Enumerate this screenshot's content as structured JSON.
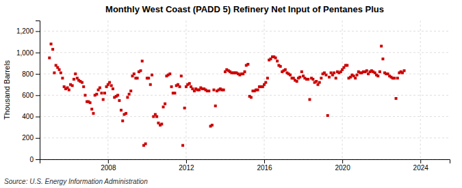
{
  "chart_data": {
    "type": "scatter",
    "title": "Monthly West Coast (PADD 5) Refinery Net Input of Pentanes Plus",
    "ylabel": "Thousand Barrels",
    "annotations": [
      "Source: U.S. Energy Information Administration"
    ],
    "color": "#cc0000",
    "marker": "square",
    "grid": true,
    "xlim": [
      2004.5,
      2025.5
    ],
    "xticks": [
      2008,
      2012,
      2016,
      2020,
      2024
    ],
    "ylim": [
      0,
      1300
    ],
    "yticks": [
      0,
      200,
      400,
      600,
      800,
      {
        "value": 1000,
        "label": "1,000"
      },
      {
        "value": 1200,
        "label": "1,200"
      }
    ],
    "x": [
      2005.0,
      2005.08,
      2005.17,
      2005.25,
      2005.33,
      2005.42,
      2005.5,
      2005.58,
      2005.67,
      2005.75,
      2005.83,
      2005.92,
      2006.0,
      2006.08,
      2006.17,
      2006.25,
      2006.33,
      2006.42,
      2006.5,
      2006.58,
      2006.67,
      2006.75,
      2006.83,
      2006.92,
      2007.0,
      2007.08,
      2007.17,
      2007.25,
      2007.33,
      2007.42,
      2007.5,
      2007.58,
      2007.67,
      2007.75,
      2007.83,
      2007.92,
      2008.0,
      2008.08,
      2008.17,
      2008.25,
      2008.33,
      2008.42,
      2008.5,
      2008.58,
      2008.67,
      2008.75,
      2008.83,
      2008.92,
      2009.0,
      2009.08,
      2009.17,
      2009.25,
      2009.33,
      2009.42,
      2009.5,
      2009.58,
      2009.67,
      2009.75,
      2009.83,
      2009.92,
      2010.0,
      2010.08,
      2010.17,
      2010.25,
      2010.33,
      2010.42,
      2010.5,
      2010.58,
      2010.67,
      2010.75,
      2010.83,
      2010.92,
      2011.0,
      2011.08,
      2011.17,
      2011.25,
      2011.33,
      2011.42,
      2011.5,
      2011.58,
      2011.67,
      2011.75,
      2011.83,
      2011.92,
      2012.0,
      2012.08,
      2012.17,
      2012.25,
      2012.33,
      2012.42,
      2012.5,
      2012.58,
      2012.67,
      2012.75,
      2012.83,
      2012.92,
      2013.0,
      2013.08,
      2013.17,
      2013.25,
      2013.33,
      2013.42,
      2013.5,
      2013.58,
      2013.67,
      2013.75,
      2013.83,
      2013.92,
      2014.0,
      2014.08,
      2014.17,
      2014.25,
      2014.33,
      2014.42,
      2014.5,
      2014.58,
      2014.67,
      2014.75,
      2014.83,
      2014.92,
      2015.0,
      2015.08,
      2015.17,
      2015.25,
      2015.33,
      2015.42,
      2015.5,
      2015.58,
      2015.67,
      2015.75,
      2015.83,
      2015.92,
      2016.0,
      2016.08,
      2016.17,
      2016.25,
      2016.33,
      2016.42,
      2016.5,
      2016.58,
      2016.67,
      2016.75,
      2016.83,
      2016.92,
      2017.0,
      2017.08,
      2017.17,
      2017.25,
      2017.33,
      2017.42,
      2017.5,
      2017.58,
      2017.67,
      2017.75,
      2017.83,
      2017.92,
      2018.0,
      2018.08,
      2018.17,
      2018.25,
      2018.33,
      2018.42,
      2018.5,
      2018.58,
      2018.67,
      2018.75,
      2018.83,
      2018.92,
      2019.0,
      2019.08,
      2019.17,
      2019.25,
      2019.33,
      2019.42,
      2019.5,
      2019.58,
      2019.67,
      2019.75,
      2019.83,
      2019.92,
      2020.0,
      2020.08,
      2020.17,
      2020.25,
      2020.33,
      2020.42,
      2020.5,
      2020.58,
      2020.67,
      2020.75,
      2020.83,
      2020.92,
      2021.0,
      2021.08,
      2021.17,
      2021.25,
      2021.33,
      2021.42,
      2021.5,
      2021.58,
      2021.67,
      2021.75,
      2021.83,
      2021.92,
      2022.0,
      2022.08,
      2022.17,
      2022.25,
      2022.33,
      2022.42,
      2022.5,
      2022.58,
      2022.67,
      2022.75,
      2022.83,
      2022.92,
      2023.0,
      2023.08,
      2023.17
    ],
    "values": [
      950,
      1080,
      1030,
      810,
      880,
      860,
      840,
      810,
      760,
      680,
      660,
      670,
      650,
      700,
      690,
      750,
      800,
      760,
      740,
      730,
      720,
      680,
      600,
      540,
      540,
      530,
      470,
      430,
      600,
      610,
      650,
      670,
      620,
      560,
      620,
      680,
      700,
      720,
      690,
      660,
      580,
      590,
      600,
      550,
      460,
      360,
      420,
      430,
      580,
      610,
      640,
      780,
      800,
      760,
      760,
      820,
      830,
      920,
      130,
      145,
      760,
      760,
      700,
      790,
      400,
      420,
      400,
      340,
      320,
      330,
      490,
      520,
      780,
      790,
      800,
      680,
      620,
      620,
      690,
      700,
      680,
      780,
      130,
      480,
      680,
      700,
      710,
      680,
      660,
      640,
      660,
      650,
      650,
      670,
      660,
      660,
      650,
      640,
      640,
      310,
      320,
      650,
      500,
      640,
      650,
      660,
      650,
      650,
      820,
      840,
      830,
      820,
      810,
      810,
      810,
      810,
      800,
      790,
      800,
      800,
      820,
      880,
      890,
      590,
      580,
      640,
      640,
      650,
      650,
      680,
      680,
      680,
      700,
      720,
      760,
      930,
      940,
      960,
      960,
      950,
      920,
      880,
      870,
      820,
      830,
      840,
      810,
      800,
      790,
      760,
      760,
      740,
      730,
      760,
      770,
      820,
      780,
      760,
      750,
      750,
      560,
      760,
      750,
      720,
      730,
      700,
      720,
      760,
      800,
      810,
      790,
      410,
      770,
      810,
      790,
      810,
      760,
      820,
      810,
      820,
      840,
      860,
      880,
      880,
      760,
      770,
      790,
      780,
      760,
      790,
      820,
      810,
      810,
      820,
      820,
      830,
      800,
      820,
      830,
      820,
      810,
      790,
      780,
      820,
      1060,
      940,
      810,
      800,
      800,
      780,
      770,
      760,
      760,
      570,
      760,
      810,
      820,
      810,
      830
    ]
  }
}
